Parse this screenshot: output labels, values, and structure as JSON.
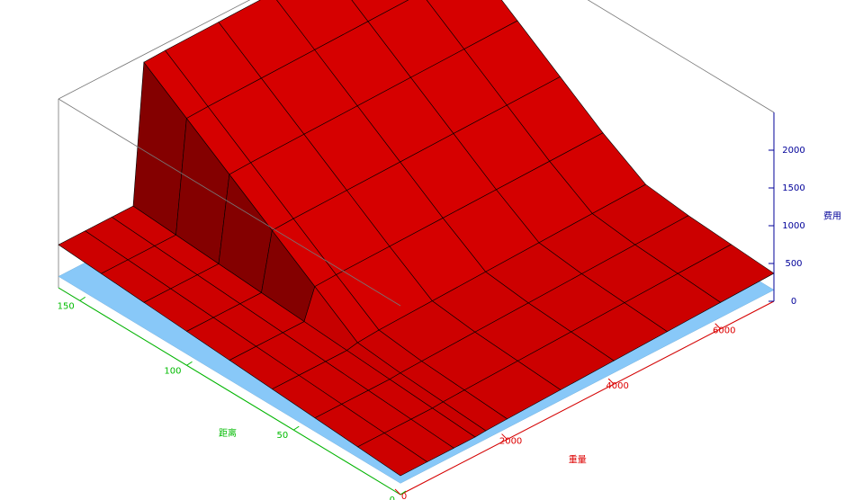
{
  "chart_data": {
    "type": "surface3d",
    "x_label": "重量",
    "y_label": "距离",
    "z_label": "费用",
    "x_color": "#dd0000",
    "y_color": "#00bb00",
    "z_color": "#000099",
    "xlim": [
      0,
      7000
    ],
    "ylim": [
      0,
      160
    ],
    "zlim": [
      0,
      2500
    ],
    "xticks": [
      0,
      2000,
      4000,
      6000
    ],
    "yticks": [
      0,
      50,
      100,
      150
    ],
    "zticks": [
      0,
      500,
      1000,
      1500,
      2000
    ],
    "series": [
      {
        "color": "#88c8f8",
        "x": [
          0,
          7000
        ],
        "y": [
          0,
          160
        ],
        "values": [
          [
            150,
            150
          ],
          [
            150,
            150
          ]
        ]
      },
      {
        "color": "#cc0000",
        "x": [
          0,
          500,
          1000,
          1400,
          1600,
          2000,
          3000,
          4000,
          5000,
          6000,
          7000
        ],
        "y": [
          0,
          20,
          40,
          60,
          80,
          100,
          120,
          140,
          160
        ],
        "values": [
          [
            250,
            250,
            250,
            250,
            260,
            270,
            290,
            310,
            330,
            350,
            370
          ],
          [
            290,
            290,
            290,
            290,
            300,
            310,
            330,
            350,
            370,
            390,
            410
          ],
          [
            330,
            330,
            330,
            330,
            340,
            350,
            370,
            390,
            410,
            430,
            450
          ],
          [
            370,
            370,
            370,
            370,
            400,
            420,
            440,
            460,
            480,
            500,
            520
          ],
          [
            410,
            410,
            410,
            410,
            800,
            810,
            820,
            830,
            840,
            850,
            860
          ],
          [
            450,
            450,
            450,
            450,
            1200,
            1210,
            1220,
            1230,
            1240,
            1250,
            1260
          ],
          [
            490,
            490,
            490,
            490,
            1600,
            1610,
            1620,
            1630,
            1640,
            1650,
            1660
          ],
          [
            530,
            530,
            530,
            530,
            2000,
            2010,
            2020,
            2030,
            2040,
            2050,
            2060
          ],
          [
            570,
            570,
            570,
            570,
            2400,
            2410,
            2420,
            2430,
            2440,
            2450,
            2460
          ]
        ]
      }
    ]
  }
}
